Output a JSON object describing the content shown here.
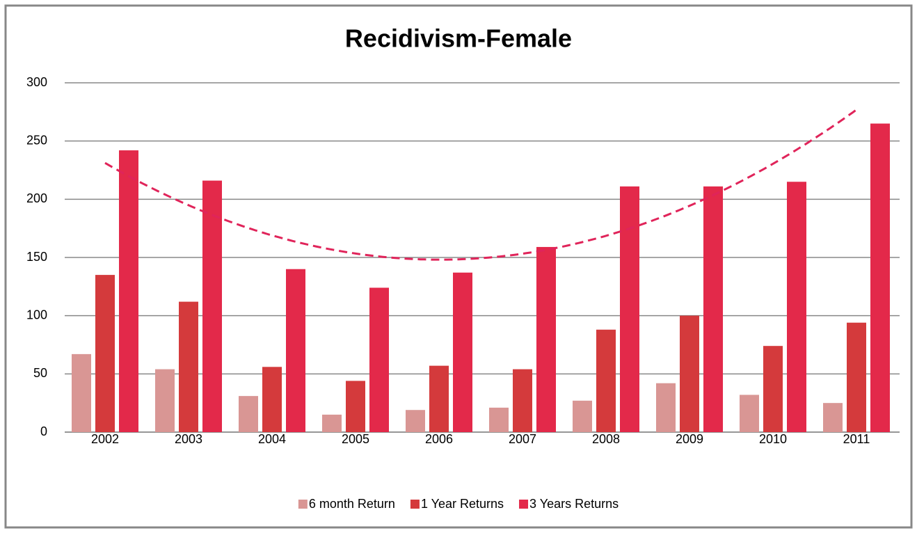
{
  "chart_data": {
    "type": "bar",
    "title": "Recidivism-Female",
    "categories": [
      "2002",
      "2003",
      "2004",
      "2005",
      "2006",
      "2007",
      "2008",
      "2009",
      "2010",
      "2011"
    ],
    "series": [
      {
        "name": "6 month Return",
        "color": "#d99694",
        "values": [
          67,
          54,
          31,
          15,
          19,
          21,
          27,
          42,
          32,
          25
        ]
      },
      {
        "name": "1 Year Returns",
        "color": "#d43a3c",
        "values": [
          135,
          112,
          56,
          44,
          57,
          54,
          88,
          100,
          74,
          94
        ]
      },
      {
        "name": "3 Years Returns",
        "color": "#e3294a",
        "values": [
          242,
          216,
          140,
          124,
          137,
          159,
          211,
          211,
          215,
          265
        ]
      }
    ],
    "trendline": {
      "series": 2,
      "order": 2,
      "color": "#e0245a",
      "dashed": true
    },
    "ylim": [
      0,
      300
    ],
    "yticks": [
      0,
      50,
      100,
      150,
      200,
      250,
      300
    ],
    "grid": true,
    "legend": "bottom"
  }
}
